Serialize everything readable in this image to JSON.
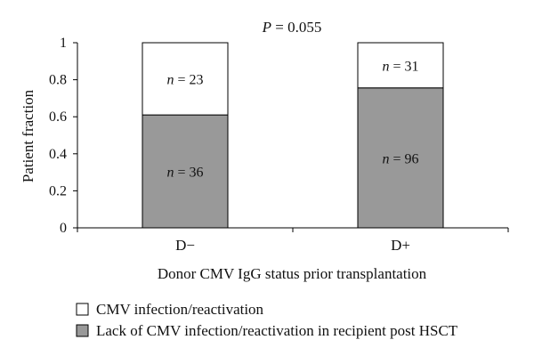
{
  "chart_data": {
    "type": "bar",
    "stacked": true,
    "annotation": {
      "p_symbol": "P",
      "p_text": " = 0.055"
    },
    "xlabel": "Donor CMV IgG status prior transplantation",
    "ylabel": "Patient fraction",
    "ylim": [
      0,
      1
    ],
    "yticks": [
      "0",
      "0.2",
      "0.4",
      "0.6",
      "0.8",
      "1"
    ],
    "categories": [
      "D−",
      "D+"
    ],
    "series": [
      {
        "name": "Lack of CMV infection/reactivation in recipient post HSCT",
        "color": "#999999",
        "values": [
          0.61,
          0.756
        ],
        "labels": [
          "36",
          "96"
        ]
      },
      {
        "name": "CMV infection/reactivation",
        "color": "#ffffff",
        "values": [
          0.39,
          0.244
        ],
        "labels": [
          "23",
          "31"
        ]
      }
    ],
    "n_symbol": "n",
    "legend_position": "bottom-left",
    "grid": false
  }
}
